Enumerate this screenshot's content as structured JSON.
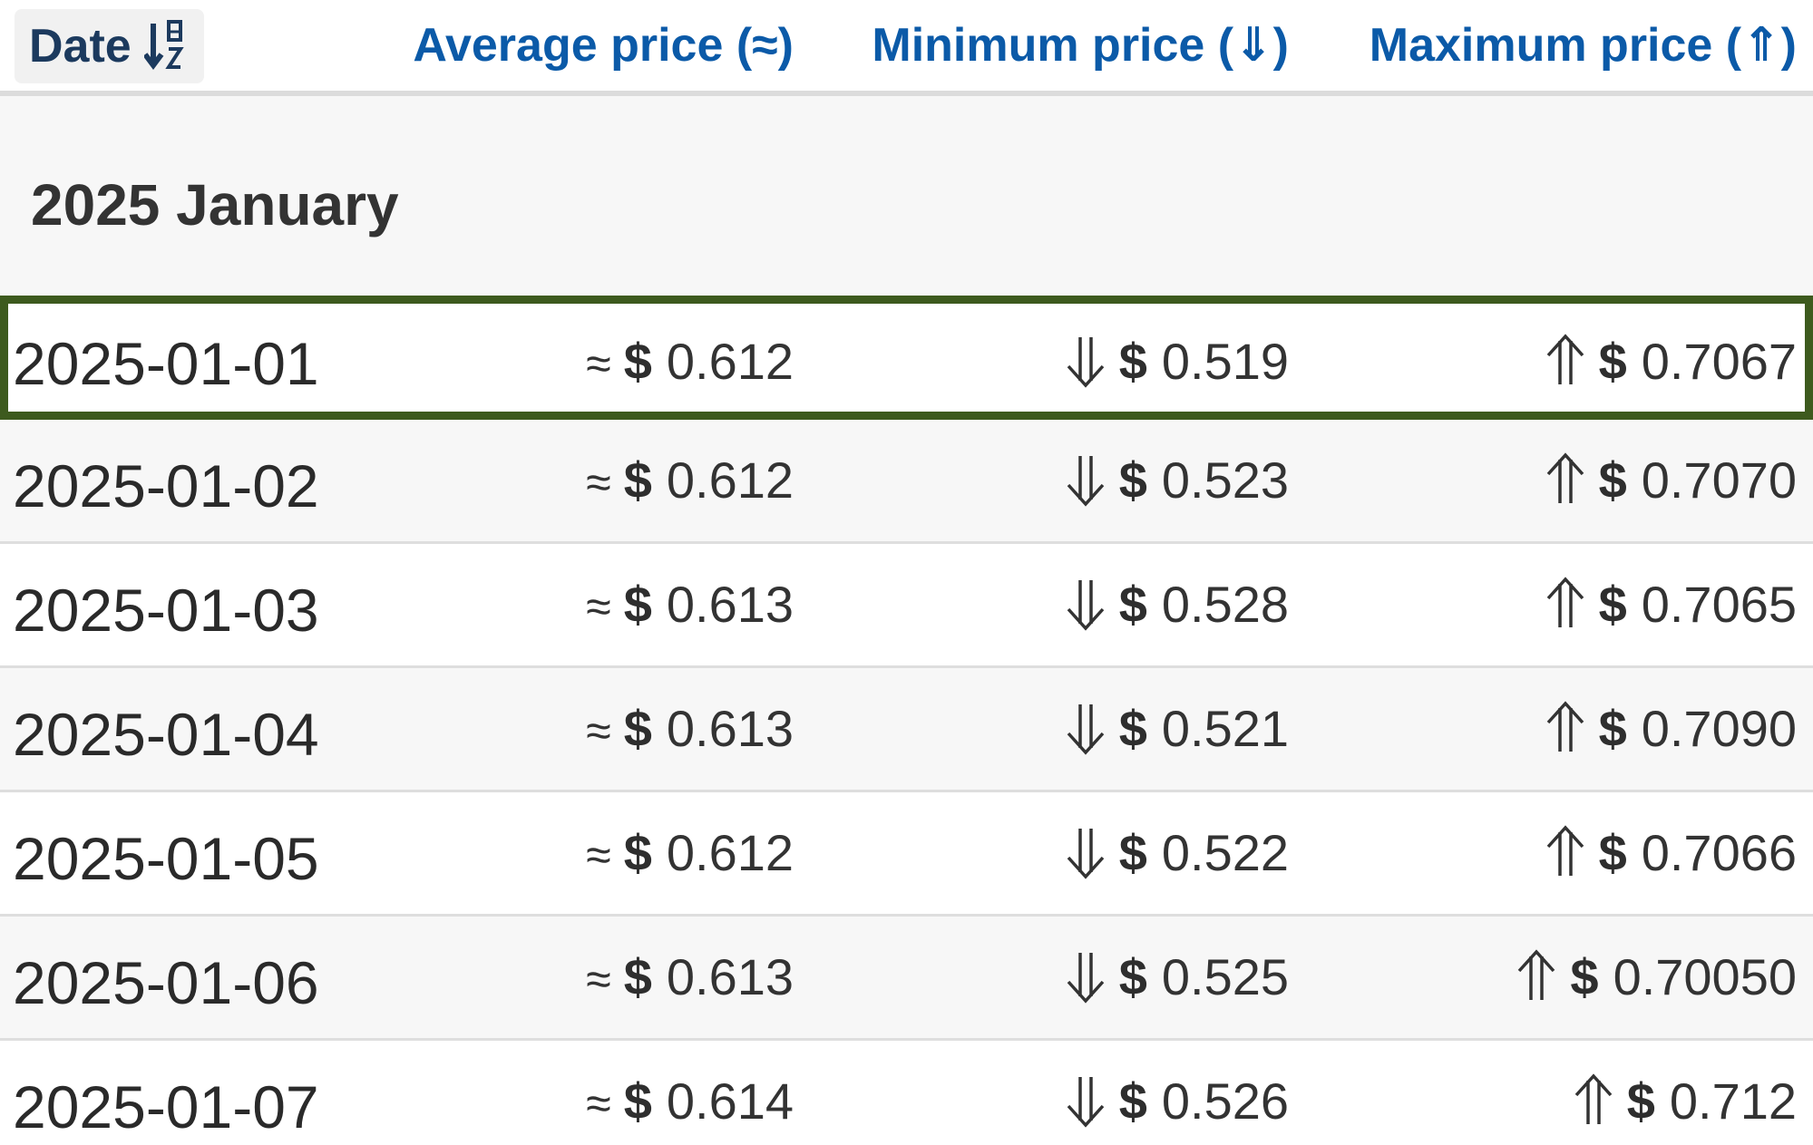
{
  "header": {
    "date_label": "Date",
    "avg_label": "Average price (≈)",
    "min_label": "Minimum price (⇓)",
    "max_label": "Maximum price (⇑)",
    "sort_icon": "sort-alpha-down-icon",
    "link_color": "#0b5aa8"
  },
  "group": {
    "title": "2025 January"
  },
  "symbols": {
    "approx": "≈",
    "currency": "$"
  },
  "highlight_color": "#3d5a1e",
  "rows": [
    {
      "date": "2025-01-01",
      "avg": "0.612",
      "min": "0.519",
      "max": "0.7067"
    },
    {
      "date": "2025-01-02",
      "avg": "0.612",
      "min": "0.523",
      "max": "0.7070"
    },
    {
      "date": "2025-01-03",
      "avg": "0.613",
      "min": "0.528",
      "max": "0.7065"
    },
    {
      "date": "2025-01-04",
      "avg": "0.613",
      "min": "0.521",
      "max": "0.7090"
    },
    {
      "date": "2025-01-05",
      "avg": "0.612",
      "min": "0.522",
      "max": "0.7066"
    },
    {
      "date": "2025-01-06",
      "avg": "0.613",
      "min": "0.525",
      "max": "0.70050"
    },
    {
      "date": "2025-01-07",
      "avg": "0.614",
      "min": "0.526",
      "max": "0.712"
    }
  ]
}
